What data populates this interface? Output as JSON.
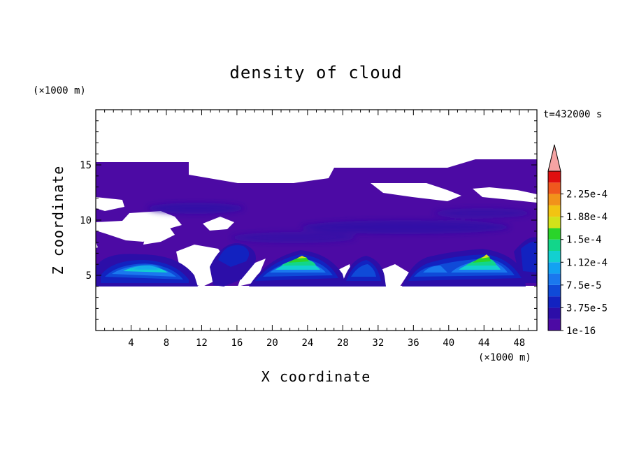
{
  "chart_data": {
    "type": "heatmap",
    "title": "density of cloud",
    "xlabel": "X coordinate",
    "ylabel": "Z coordinate",
    "x_unit": "(×1000 m)",
    "y_unit": "(×1000 m)",
    "time_label": "t=432000 s",
    "xlim": [
      0,
      50
    ],
    "ylim": [
      0,
      20
    ],
    "x_ticks": [
      4,
      8,
      12,
      16,
      20,
      24,
      28,
      32,
      36,
      40,
      44,
      48
    ],
    "y_ticks": [
      5,
      10,
      15
    ],
    "colorbar": {
      "levels": [
        1e-16,
        1.875e-05,
        3.75e-05,
        5.625e-05,
        7.5e-05,
        9.375e-05,
        0.0001125,
        0.00013125,
        0.00015,
        0.00016875,
        0.0001875,
        0.00020625,
        0.000225,
        0.00024375
      ],
      "tick_labels": [
        "1e-16",
        "3.75e-5",
        "7.5e-5",
        "1.12e-4",
        "1.5e-4",
        "1.88e-4",
        "2.25e-4"
      ],
      "colors": [
        "#4c0aa4",
        "#2c0ea8",
        "#1222c0",
        "#0f4ad8",
        "#1a78ee",
        "#12a2f2",
        "#12d0d0",
        "#12d68a",
        "#2ad42a",
        "#d2e21a",
        "#f2c412",
        "#f2921a",
        "#f0581e",
        "#e01010"
      ],
      "extend_color": "#f5a3a3"
    },
    "cloud_features": [
      {
        "kind": "thin layer",
        "x_range": [
          0,
          50
        ],
        "z_range": [
          11,
          15
        ],
        "level": 1e-16
      },
      {
        "kind": "convective cell",
        "x_center": 6.5,
        "z_top": 6.5,
        "max_density": 0.00013
      },
      {
        "kind": "convective cell",
        "x_center": 23,
        "z_top": 7,
        "max_density": 0.00017
      },
      {
        "kind": "convective cell",
        "x_center": 30,
        "z_top": 6.5,
        "max_density": 9e-05
      },
      {
        "kind": "convective cell",
        "x_center": 38,
        "z_top": 6.5,
        "max_density": 0.00013
      },
      {
        "kind": "convective cell",
        "x_center": 44,
        "z_top": 7,
        "max_density": 0.00017
      }
    ]
  }
}
